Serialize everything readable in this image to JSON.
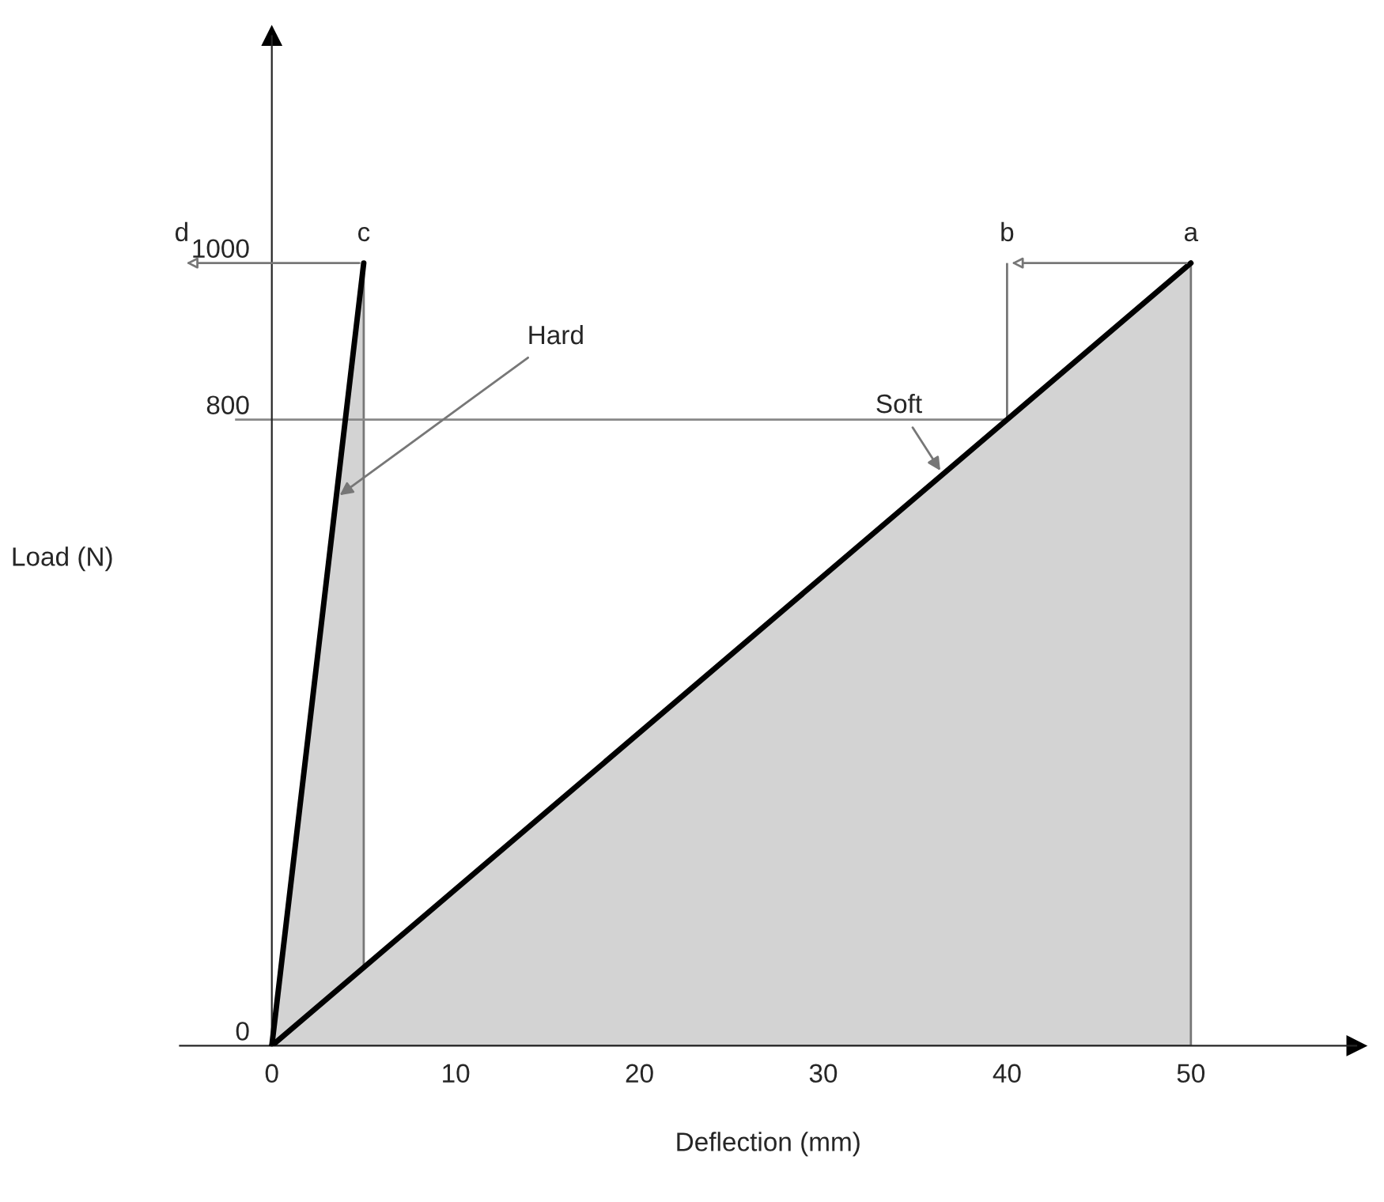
{
  "chart_data": {
    "type": "area",
    "xlabel": "Deflection (mm)",
    "ylabel": "Load (N)",
    "xlim": [
      -5,
      59
    ],
    "ylim": [
      0,
      1290
    ],
    "xticks": [
      0,
      10,
      20,
      30,
      40,
      50
    ],
    "yticks": [
      0,
      800,
      1000
    ],
    "grid": false,
    "series": [
      {
        "name": "Hard",
        "color": "#d3d3d3",
        "x": [
          0,
          5
        ],
        "values": [
          0,
          1000
        ]
      },
      {
        "name": "Soft",
        "color": "#d3d3d3",
        "x": [
          0,
          50
        ],
        "values": [
          0,
          1000
        ]
      }
    ],
    "ref_lines": [
      {
        "axis": "y",
        "value": 800,
        "color": "#888888"
      }
    ],
    "annotations": [
      {
        "text": "a",
        "x": 50,
        "y": 1000
      },
      {
        "text": "b",
        "x": 40,
        "y": 800
      },
      {
        "text": "c",
        "x": 5,
        "y": 1000
      },
      "d"
    ]
  }
}
